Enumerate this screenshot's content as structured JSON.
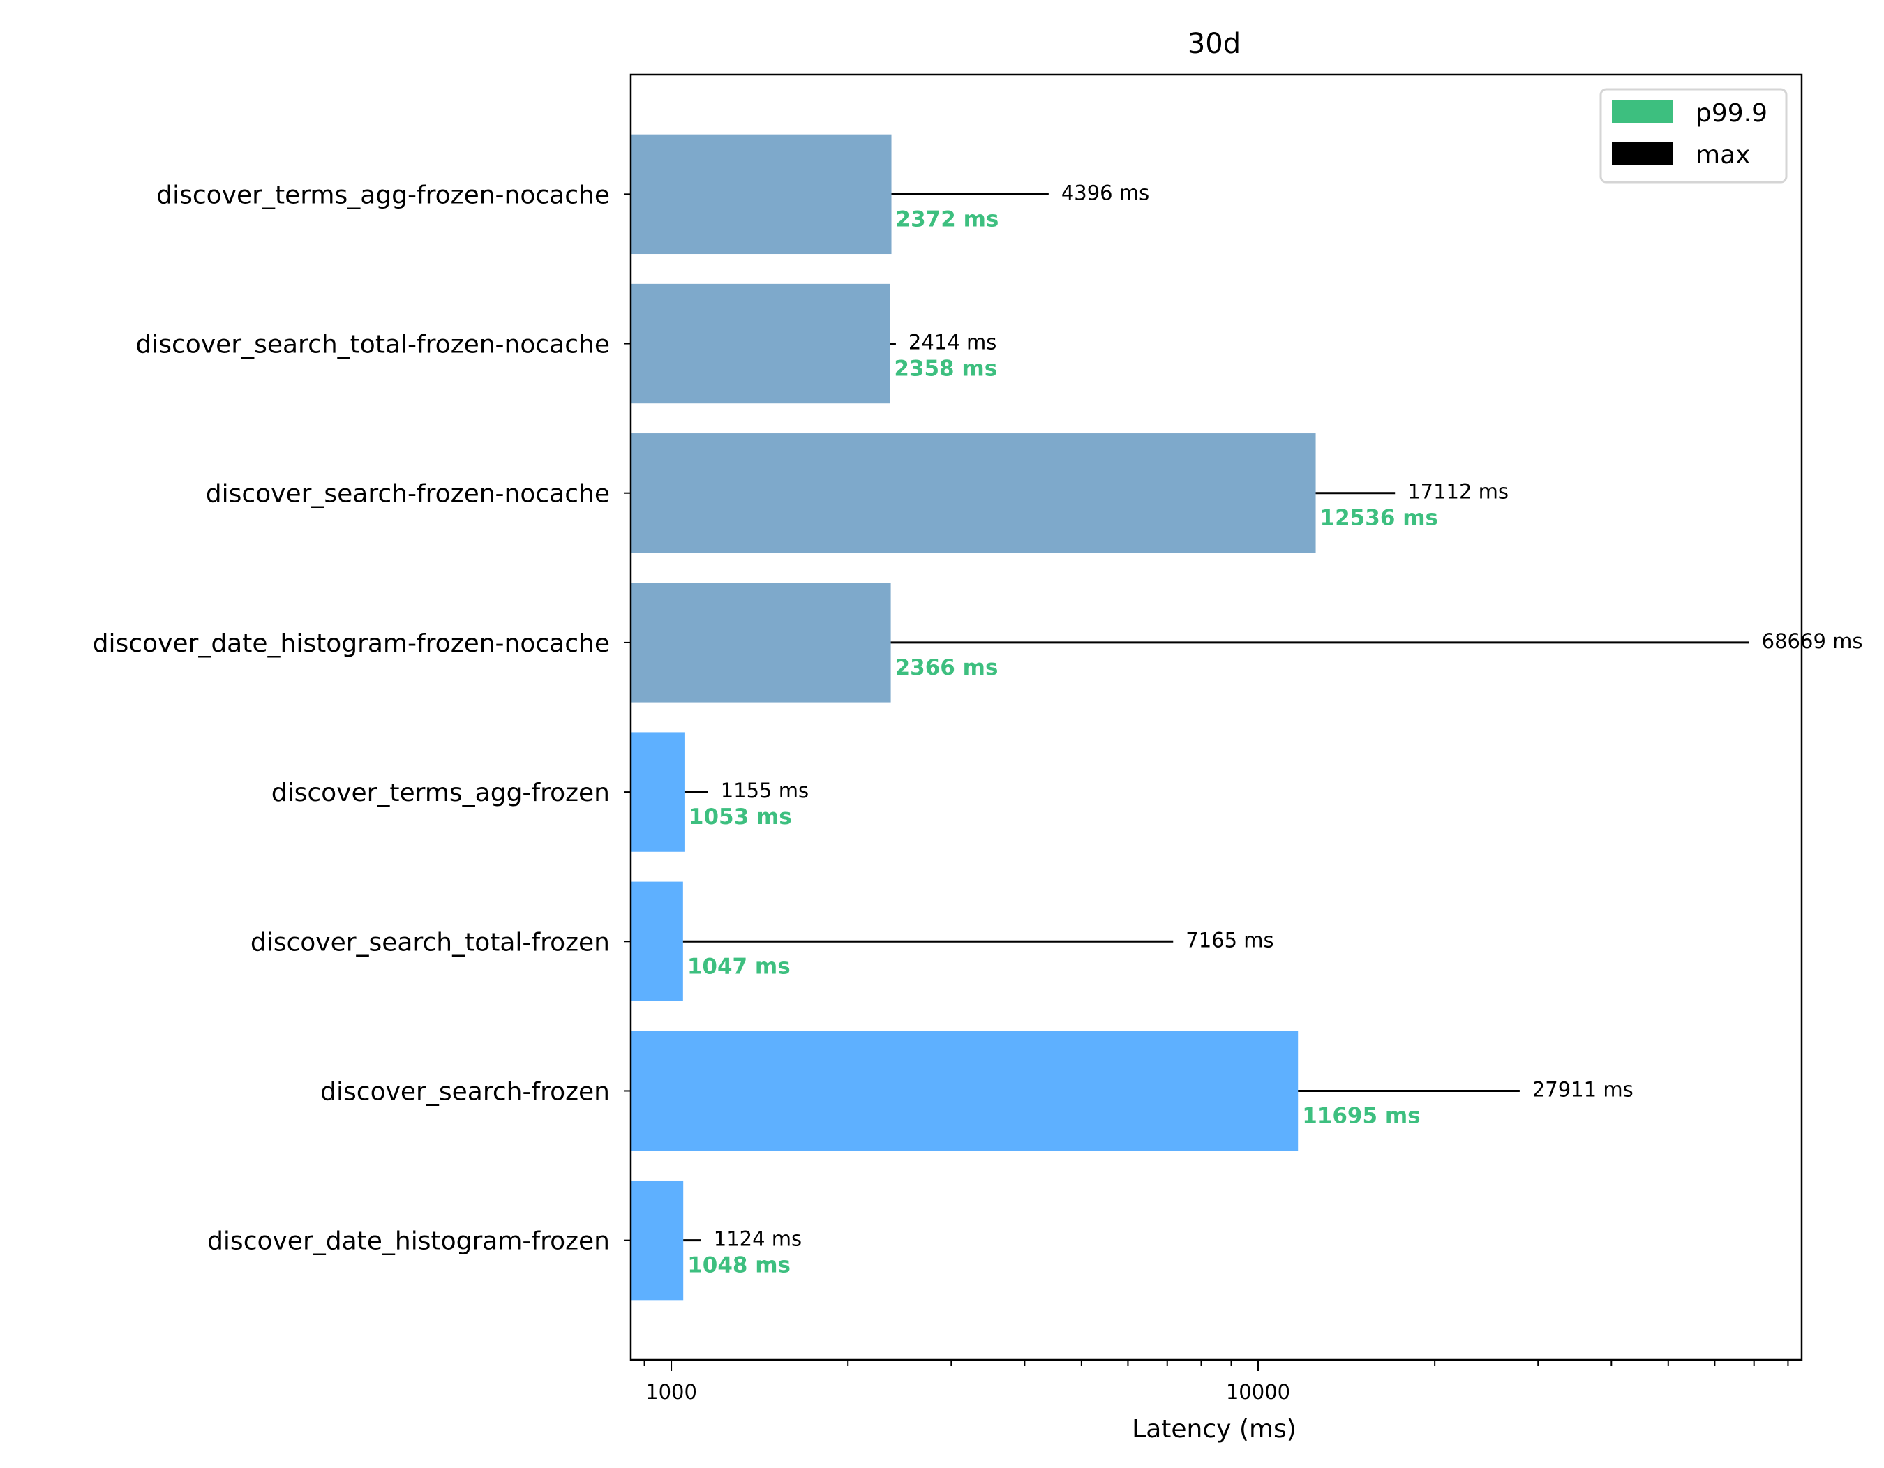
{
  "chart_data": {
    "type": "bar",
    "orientation": "horizontal",
    "title": "30d",
    "xlabel": "Latency (ms)",
    "ylabel": "",
    "xscale": "log",
    "xlim": [
      853,
      84400
    ],
    "xticks": [
      1000,
      10000
    ],
    "xtick_labels": [
      "1000",
      "10000"
    ],
    "grid": false,
    "legend": {
      "placement": "top-right",
      "entries": [
        {
          "name": "p99.9",
          "color": "#3dbf7f"
        },
        {
          "name": "max",
          "color": "#000000"
        }
      ]
    },
    "colors": {
      "nocache": "#7ea9cb",
      "frozen": "#5eb0ff",
      "p999_label": "#3dbf7f",
      "max_line": "#000000"
    },
    "unit_suffix": " ms",
    "categories": [
      "discover_terms_agg-frozen-nocache",
      "discover_search_total-frozen-nocache",
      "discover_search-frozen-nocache",
      "discover_date_histogram-frozen-nocache",
      "discover_terms_agg-frozen",
      "discover_search_total-frozen",
      "discover_search-frozen",
      "discover_date_histogram-frozen"
    ],
    "groups": [
      "nocache",
      "nocache",
      "nocache",
      "nocache",
      "frozen",
      "frozen",
      "frozen",
      "frozen"
    ],
    "series": [
      {
        "name": "p99.9",
        "values": [
          2372,
          2358,
          12536,
          2366,
          1053,
          1047,
          11695,
          1048
        ]
      },
      {
        "name": "max",
        "values": [
          4396,
          2414,
          17112,
          68669,
          1155,
          7165,
          27911,
          1124
        ]
      }
    ]
  }
}
